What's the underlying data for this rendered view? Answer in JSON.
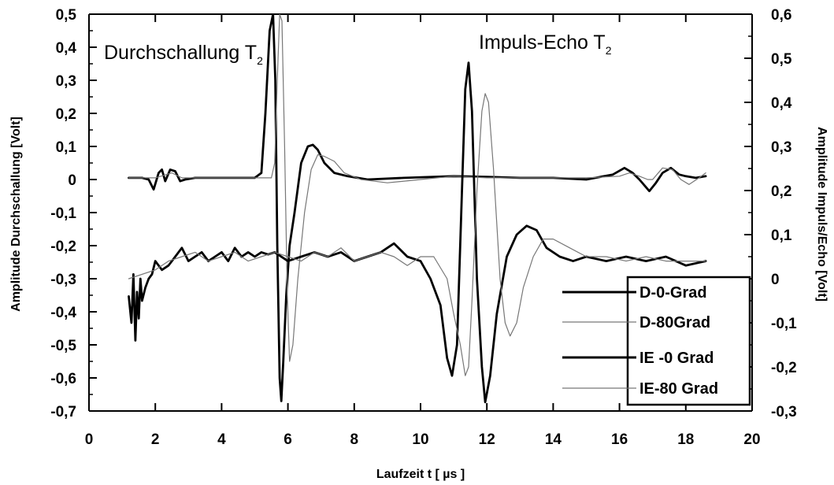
{
  "chart_data": {
    "type": "line",
    "title": "",
    "xlabel": "Laufzeit t [ µs ]",
    "ylabel_left": "Amplitude Durchschallung [Volt]",
    "ylabel_right": "Amplitude Impuls/Echo [Volt]",
    "xlim": [
      0,
      20
    ],
    "ylim_left": [
      -0.7,
      0.5
    ],
    "ylim_right": [
      -0.3,
      0.6
    ],
    "x_ticks": [
      "0",
      "2",
      "4",
      "6",
      "8",
      "10",
      "12",
      "14",
      "16",
      "18",
      "20"
    ],
    "y_left_ticks": [
      "0,5",
      "0,4",
      "0,3",
      "0,2",
      "0,1",
      "0",
      "-0,1",
      "-0,2",
      "-0,3",
      "-0,4",
      "-0,5",
      "-0,6",
      "-0,7"
    ],
    "y_right_ticks": [
      "0,6",
      "0,5",
      "0,4",
      "0,3",
      "0,2",
      "0,1",
      "0",
      "-0,1",
      "-0,2",
      "-0,3"
    ],
    "grid": false,
    "legend_position": "bottom-right",
    "annotations": [
      {
        "text": "Durchschallung T",
        "sub": "2",
        "where": "top-left"
      },
      {
        "text": "Impuls-Echo T",
        "sub": "2",
        "where": "top-center"
      }
    ],
    "series": [
      {
        "name": "D-0-Grad",
        "axis": "left",
        "style": "thick",
        "x": [
          1.2,
          1.6,
          1.8,
          1.95,
          2.1,
          2.2,
          2.3,
          2.45,
          2.6,
          2.75,
          2.9,
          3.2,
          4.0,
          5.0,
          5.2,
          5.32,
          5.45,
          5.55,
          5.62,
          5.68,
          5.75,
          5.8,
          5.86,
          5.95,
          6.05,
          6.2,
          6.4,
          6.6,
          6.75,
          6.9,
          7.1,
          7.4,
          7.8,
          8.4,
          9.5,
          11.0,
          12.0,
          13.0,
          14.0,
          15.0,
          15.8,
          16.15,
          16.4,
          16.6,
          16.9,
          17.1,
          17.3,
          17.55,
          17.8,
          18.0,
          18.3,
          18.6
        ],
        "y": [
          0.005,
          0.005,
          0.0,
          -0.03,
          0.02,
          0.03,
          -0.005,
          0.03,
          0.025,
          -0.005,
          0.0,
          0.005,
          0.005,
          0.005,
          0.02,
          0.2,
          0.45,
          0.5,
          0.3,
          -0.2,
          -0.6,
          -0.67,
          -0.55,
          -0.35,
          -0.2,
          -0.1,
          0.05,
          0.1,
          0.105,
          0.09,
          0.05,
          0.02,
          0.01,
          0.0,
          0.005,
          0.01,
          0.008,
          0.005,
          0.005,
          0.0,
          0.015,
          0.035,
          0.02,
          0.0,
          -0.035,
          -0.01,
          0.02,
          0.035,
          0.015,
          0.01,
          0.005,
          0.01
        ]
      },
      {
        "name": "D-80Grad",
        "axis": "left",
        "style": "thin",
        "x": [
          1.2,
          2.0,
          2.5,
          2.8,
          3.0,
          5.5,
          5.6,
          5.68,
          5.75,
          5.82,
          5.9,
          5.98,
          6.05,
          6.15,
          6.3,
          6.5,
          6.7,
          6.9,
          7.1,
          7.4,
          7.7,
          8.2,
          9.0,
          10.0,
          11.0,
          12.0,
          13.0,
          14.0,
          15.0,
          16.0,
          16.3,
          16.6,
          16.85,
          17.0,
          17.3,
          17.6,
          17.85,
          18.1,
          18.4,
          18.6
        ],
        "y": [
          0.005,
          0.005,
          0.02,
          0.005,
          0.005,
          0.005,
          0.05,
          0.3,
          0.5,
          0.48,
          0.1,
          -0.35,
          -0.55,
          -0.5,
          -0.3,
          -0.1,
          0.03,
          0.075,
          0.07,
          0.055,
          0.02,
          0.0,
          -0.01,
          0.0,
          0.01,
          0.005,
          0.005,
          0.005,
          0.005,
          0.01,
          0.02,
          0.01,
          0.0,
          0.0,
          0.035,
          0.03,
          0.0,
          -0.015,
          0.005,
          0.02
        ]
      },
      {
        "name": "IE -0 Grad",
        "axis": "right",
        "style": "thick",
        "x": [
          1.2,
          1.28,
          1.34,
          1.4,
          1.45,
          1.5,
          1.55,
          1.6,
          1.7,
          1.8,
          1.9,
          2.0,
          2.2,
          2.4,
          2.6,
          2.8,
          3.0,
          3.2,
          3.4,
          3.6,
          3.8,
          4.0,
          4.2,
          4.4,
          4.6,
          4.8,
          5.0,
          5.2,
          5.4,
          5.6,
          6.0,
          6.4,
          6.8,
          7.2,
          7.6,
          8.0,
          8.4,
          8.8,
          9.2,
          9.6,
          10.0,
          10.3,
          10.6,
          10.8,
          10.95,
          11.1,
          11.25,
          11.35,
          11.45,
          11.55,
          11.7,
          11.85,
          11.95,
          12.1,
          12.3,
          12.6,
          12.9,
          13.2,
          13.5,
          13.8,
          14.2,
          14.6,
          15.0,
          15.6,
          16.2,
          16.8,
          17.4,
          18.0,
          18.6
        ],
        "y": [
          -0.04,
          -0.1,
          0.01,
          -0.14,
          -0.03,
          -0.09,
          0.0,
          -0.05,
          -0.02,
          0.0,
          0.01,
          0.04,
          0.02,
          0.03,
          0.05,
          0.07,
          0.04,
          0.05,
          0.06,
          0.04,
          0.05,
          0.06,
          0.04,
          0.07,
          0.05,
          0.06,
          0.05,
          0.06,
          0.055,
          0.06,
          0.04,
          0.05,
          0.06,
          0.05,
          0.06,
          0.04,
          0.05,
          0.06,
          0.08,
          0.05,
          0.04,
          0.0,
          -0.06,
          -0.18,
          -0.22,
          -0.15,
          0.2,
          0.43,
          0.49,
          0.38,
          0.0,
          -0.2,
          -0.28,
          -0.22,
          -0.08,
          0.05,
          0.1,
          0.12,
          0.11,
          0.07,
          0.05,
          0.04,
          0.05,
          0.04,
          0.05,
          0.04,
          0.05,
          0.03,
          0.04
        ]
      },
      {
        "name": "IE-80 Grad",
        "axis": "right",
        "style": "thin",
        "x": [
          1.2,
          2.0,
          2.4,
          2.8,
          3.2,
          3.6,
          4.0,
          4.4,
          4.8,
          5.2,
          5.6,
          6.0,
          6.4,
          6.8,
          7.2,
          7.6,
          8.0,
          8.4,
          8.8,
          9.2,
          9.6,
          10.0,
          10.4,
          10.8,
          11.0,
          11.2,
          11.35,
          11.45,
          11.55,
          11.7,
          11.85,
          11.95,
          12.05,
          12.2,
          12.4,
          12.55,
          12.7,
          12.9,
          13.1,
          13.4,
          13.7,
          14.0,
          14.5,
          15.0,
          15.6,
          16.2,
          16.8,
          17.4,
          18.0,
          18.6
        ],
        "y": [
          0.0,
          0.02,
          0.04,
          0.05,
          0.06,
          0.04,
          0.05,
          0.06,
          0.04,
          0.05,
          0.06,
          0.05,
          0.04,
          0.06,
          0.05,
          0.07,
          0.04,
          0.05,
          0.06,
          0.05,
          0.03,
          0.05,
          0.05,
          0.0,
          -0.08,
          -0.15,
          -0.22,
          -0.2,
          -0.05,
          0.2,
          0.38,
          0.42,
          0.4,
          0.25,
          0.0,
          -0.1,
          -0.13,
          -0.1,
          -0.02,
          0.05,
          0.09,
          0.09,
          0.07,
          0.05,
          0.05,
          0.04,
          0.05,
          0.04,
          0.04,
          0.04
        ]
      }
    ]
  }
}
